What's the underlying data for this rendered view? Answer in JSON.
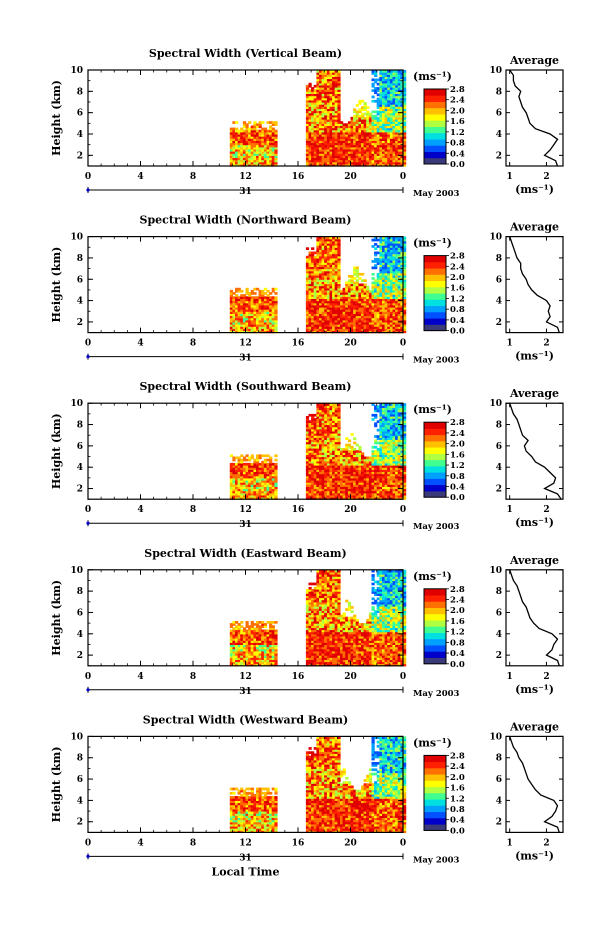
{
  "chart_data": [
    {
      "type": "heatmap",
      "title": "Spectral Width (Vertical Beam)",
      "ylabel": "Height (km)",
      "xlabel": "",
      "x_ticks": [
        "0",
        "4",
        "8",
        "12",
        "16",
        "20",
        "0"
      ],
      "y_ticks": [
        "2",
        "4",
        "6",
        "8",
        "10"
      ],
      "xlim": [
        0,
        24
      ],
      "ylim": [
        1,
        10
      ],
      "date_day": "31",
      "date_label": "May 2003",
      "colorbar_unit": "(ms⁻¹)",
      "colorbar_ticks": [
        "0.0",
        "0.4",
        "0.8",
        "1.2",
        "1.6",
        "2.0",
        "2.4",
        "2.8"
      ],
      "profile_title": "Average",
      "profile_xlabel": "(ms⁻¹)",
      "profile_x_ticks": [
        "1",
        "2"
      ],
      "profile_xlim": [
        0.9,
        2.45
      ],
      "profile": {
        "height": [
          1.0,
          1.5,
          2.0,
          2.5,
          3.0,
          3.5,
          4.0,
          4.5,
          5.0,
          5.5,
          6.0,
          6.5,
          7.0,
          7.5,
          8.0,
          8.5,
          9.0,
          9.5,
          10.0
        ],
        "width": [
          2.3,
          2.25,
          1.95,
          2.1,
          2.2,
          2.3,
          2.1,
          1.7,
          1.55,
          1.5,
          1.45,
          1.35,
          1.3,
          1.25,
          1.3,
          1.15,
          1.1,
          1.1,
          1.0
        ]
      }
    },
    {
      "type": "heatmap",
      "title": "Spectral Width (Northward Beam)",
      "ylabel": "Height (km)",
      "xlabel": "",
      "x_ticks": [
        "0",
        "4",
        "8",
        "12",
        "16",
        "20",
        "0"
      ],
      "y_ticks": [
        "2",
        "4",
        "6",
        "8",
        "10"
      ],
      "xlim": [
        0,
        24
      ],
      "ylim": [
        1,
        10
      ],
      "date_day": "31",
      "date_label": "May 2003",
      "colorbar_unit": "(ms⁻¹)",
      "colorbar_ticks": [
        "0.0",
        "0.4",
        "0.8",
        "1.2",
        "1.6",
        "2.0",
        "2.4",
        "2.8"
      ],
      "profile_title": "Average",
      "profile_xlabel": "(ms⁻¹)",
      "profile_x_ticks": [
        "1",
        "2"
      ],
      "profile_xlim": [
        0.9,
        2.45
      ],
      "profile": {
        "height": [
          1.0,
          1.5,
          2.0,
          2.5,
          3.0,
          3.5,
          4.0,
          4.5,
          5.0,
          5.5,
          6.0,
          6.5,
          7.0,
          7.5,
          8.0,
          8.5,
          9.0,
          9.5,
          10.0
        ],
        "width": [
          2.35,
          2.3,
          2.0,
          2.1,
          2.05,
          2.1,
          2.0,
          1.75,
          1.6,
          1.5,
          1.45,
          1.35,
          1.3,
          1.3,
          1.2,
          1.15,
          1.1,
          1.05,
          1.0
        ]
      }
    },
    {
      "type": "heatmap",
      "title": "Spectral Width (Southward Beam)",
      "ylabel": "Height (km)",
      "xlabel": "",
      "x_ticks": [
        "0",
        "4",
        "8",
        "12",
        "16",
        "20",
        "0"
      ],
      "y_ticks": [
        "2",
        "4",
        "6",
        "8",
        "10"
      ],
      "xlim": [
        0,
        24
      ],
      "ylim": [
        1,
        10
      ],
      "date_day": "31",
      "date_label": "May 2003",
      "colorbar_unit": "(ms⁻¹)",
      "colorbar_ticks": [
        "0.0",
        "0.4",
        "0.8",
        "1.2",
        "1.6",
        "2.0",
        "2.4",
        "2.8"
      ],
      "profile_title": "Average",
      "profile_xlabel": "(ms⁻¹)",
      "profile_x_ticks": [
        "1",
        "2"
      ],
      "profile_xlim": [
        0.9,
        2.45
      ],
      "profile": {
        "height": [
          1.0,
          1.5,
          2.0,
          2.5,
          3.0,
          3.5,
          4.0,
          4.5,
          5.0,
          5.5,
          6.0,
          6.5,
          7.0,
          7.5,
          8.0,
          8.5,
          9.0,
          9.5,
          10.0
        ],
        "width": [
          2.4,
          2.3,
          1.95,
          2.2,
          2.25,
          2.1,
          1.95,
          1.7,
          1.6,
          1.45,
          1.4,
          1.5,
          1.35,
          1.3,
          1.25,
          1.2,
          1.1,
          1.05,
          1.0
        ]
      }
    },
    {
      "type": "heatmap",
      "title": "Spectral Width (Eastward Beam)",
      "ylabel": "Height (km)",
      "xlabel": "",
      "x_ticks": [
        "0",
        "4",
        "8",
        "12",
        "16",
        "20",
        "0"
      ],
      "y_ticks": [
        "2",
        "4",
        "6",
        "8",
        "10"
      ],
      "xlim": [
        0,
        24
      ],
      "ylim": [
        1,
        10
      ],
      "date_day": "31",
      "date_label": "May 2003",
      "colorbar_unit": "(ms⁻¹)",
      "colorbar_ticks": [
        "0.0",
        "0.4",
        "0.8",
        "1.2",
        "1.6",
        "2.0",
        "2.4",
        "2.8"
      ],
      "profile_title": "Average",
      "profile_xlabel": "(ms⁻¹)",
      "profile_x_ticks": [
        "1",
        "2"
      ],
      "profile_xlim": [
        0.9,
        2.45
      ],
      "profile": {
        "height": [
          1.0,
          1.5,
          2.0,
          2.5,
          3.0,
          3.5,
          4.0,
          4.5,
          5.0,
          5.5,
          6.0,
          6.5,
          7.0,
          7.5,
          8.0,
          8.5,
          9.0,
          9.5,
          10.0
        ],
        "width": [
          2.35,
          2.3,
          2.0,
          2.15,
          2.2,
          2.3,
          2.15,
          1.8,
          1.65,
          1.55,
          1.5,
          1.45,
          1.35,
          1.3,
          1.25,
          1.2,
          1.1,
          1.05,
          1.0
        ]
      }
    },
    {
      "type": "heatmap",
      "title": "Spectral Width (Westward Beam)",
      "ylabel": "Height (km)",
      "xlabel": "Local Time",
      "x_ticks": [
        "0",
        "4",
        "8",
        "12",
        "16",
        "20",
        "0"
      ],
      "y_ticks": [
        "2",
        "4",
        "6",
        "8",
        "10"
      ],
      "xlim": [
        0,
        24
      ],
      "ylim": [
        1,
        10
      ],
      "date_day": "31",
      "date_label": "May 2003",
      "colorbar_unit": "(ms⁻¹)",
      "colorbar_ticks": [
        "0.0",
        "0.4",
        "0.8",
        "1.2",
        "1.6",
        "2.0",
        "2.4",
        "2.8"
      ],
      "profile_title": "Average",
      "profile_xlabel": "(ms⁻¹)",
      "profile_x_ticks": [
        "1",
        "2"
      ],
      "profile_xlim": [
        0.9,
        2.45
      ],
      "profile": {
        "height": [
          1.0,
          1.5,
          2.0,
          2.5,
          3.0,
          3.5,
          4.0,
          4.5,
          5.0,
          5.5,
          6.0,
          6.5,
          7.0,
          7.5,
          8.0,
          8.5,
          9.0,
          9.5,
          10.0
        ],
        "width": [
          2.35,
          2.3,
          1.95,
          2.15,
          2.25,
          2.3,
          2.2,
          1.85,
          1.7,
          1.6,
          1.5,
          1.45,
          1.4,
          1.35,
          1.25,
          1.2,
          1.1,
          1.05,
          1.0
        ]
      }
    }
  ],
  "colors": {
    "colormap": [
      "#3a3a7a",
      "#0000c8",
      "#0050ff",
      "#00a0ff",
      "#00e0e0",
      "#40ff90",
      "#b0ff40",
      "#ffff00",
      "#ffc000",
      "#ff7000",
      "#ff2000",
      "#e00000"
    ]
  }
}
